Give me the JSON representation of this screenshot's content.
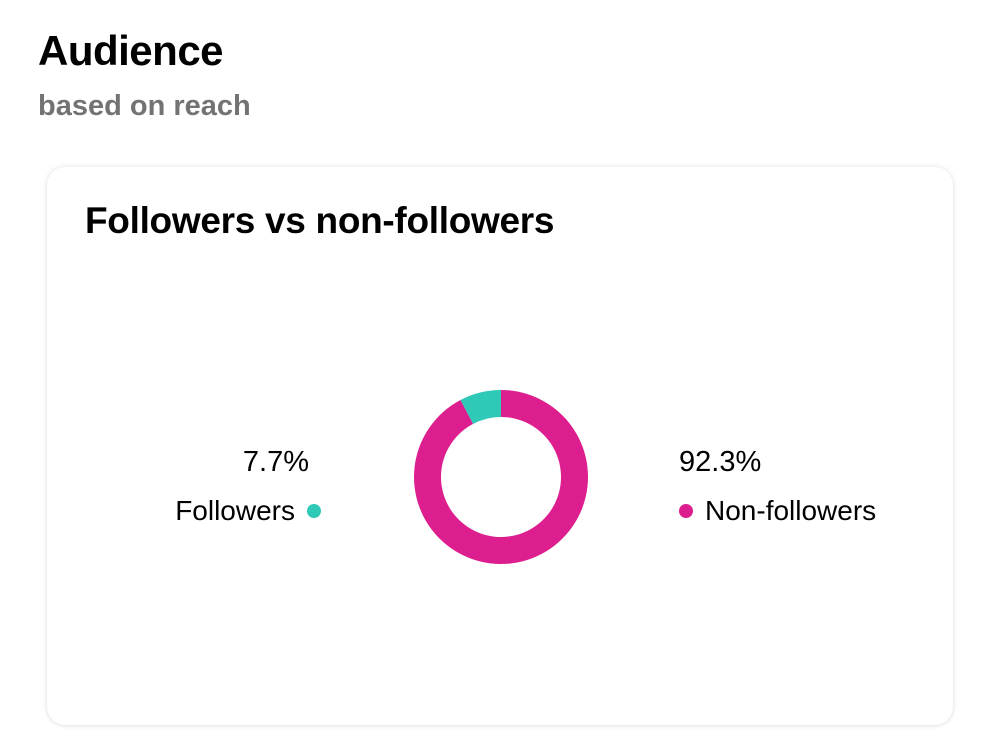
{
  "header": {
    "title": "Audience",
    "subtitle": "based on reach"
  },
  "card": {
    "title": "Followers vs non-followers"
  },
  "colors": {
    "followers": "#2ec9b7",
    "non_followers": "#dc1e8e"
  },
  "chart_data": {
    "type": "pie",
    "variant": "donut",
    "categories": [
      "Followers",
      "Non-followers"
    ],
    "values": [
      7.7,
      92.3
    ],
    "value_labels": [
      "7.7%",
      "92.3%"
    ],
    "colors": [
      "#2ec9b7",
      "#dc1e8e"
    ],
    "title": "Followers vs non-followers"
  }
}
